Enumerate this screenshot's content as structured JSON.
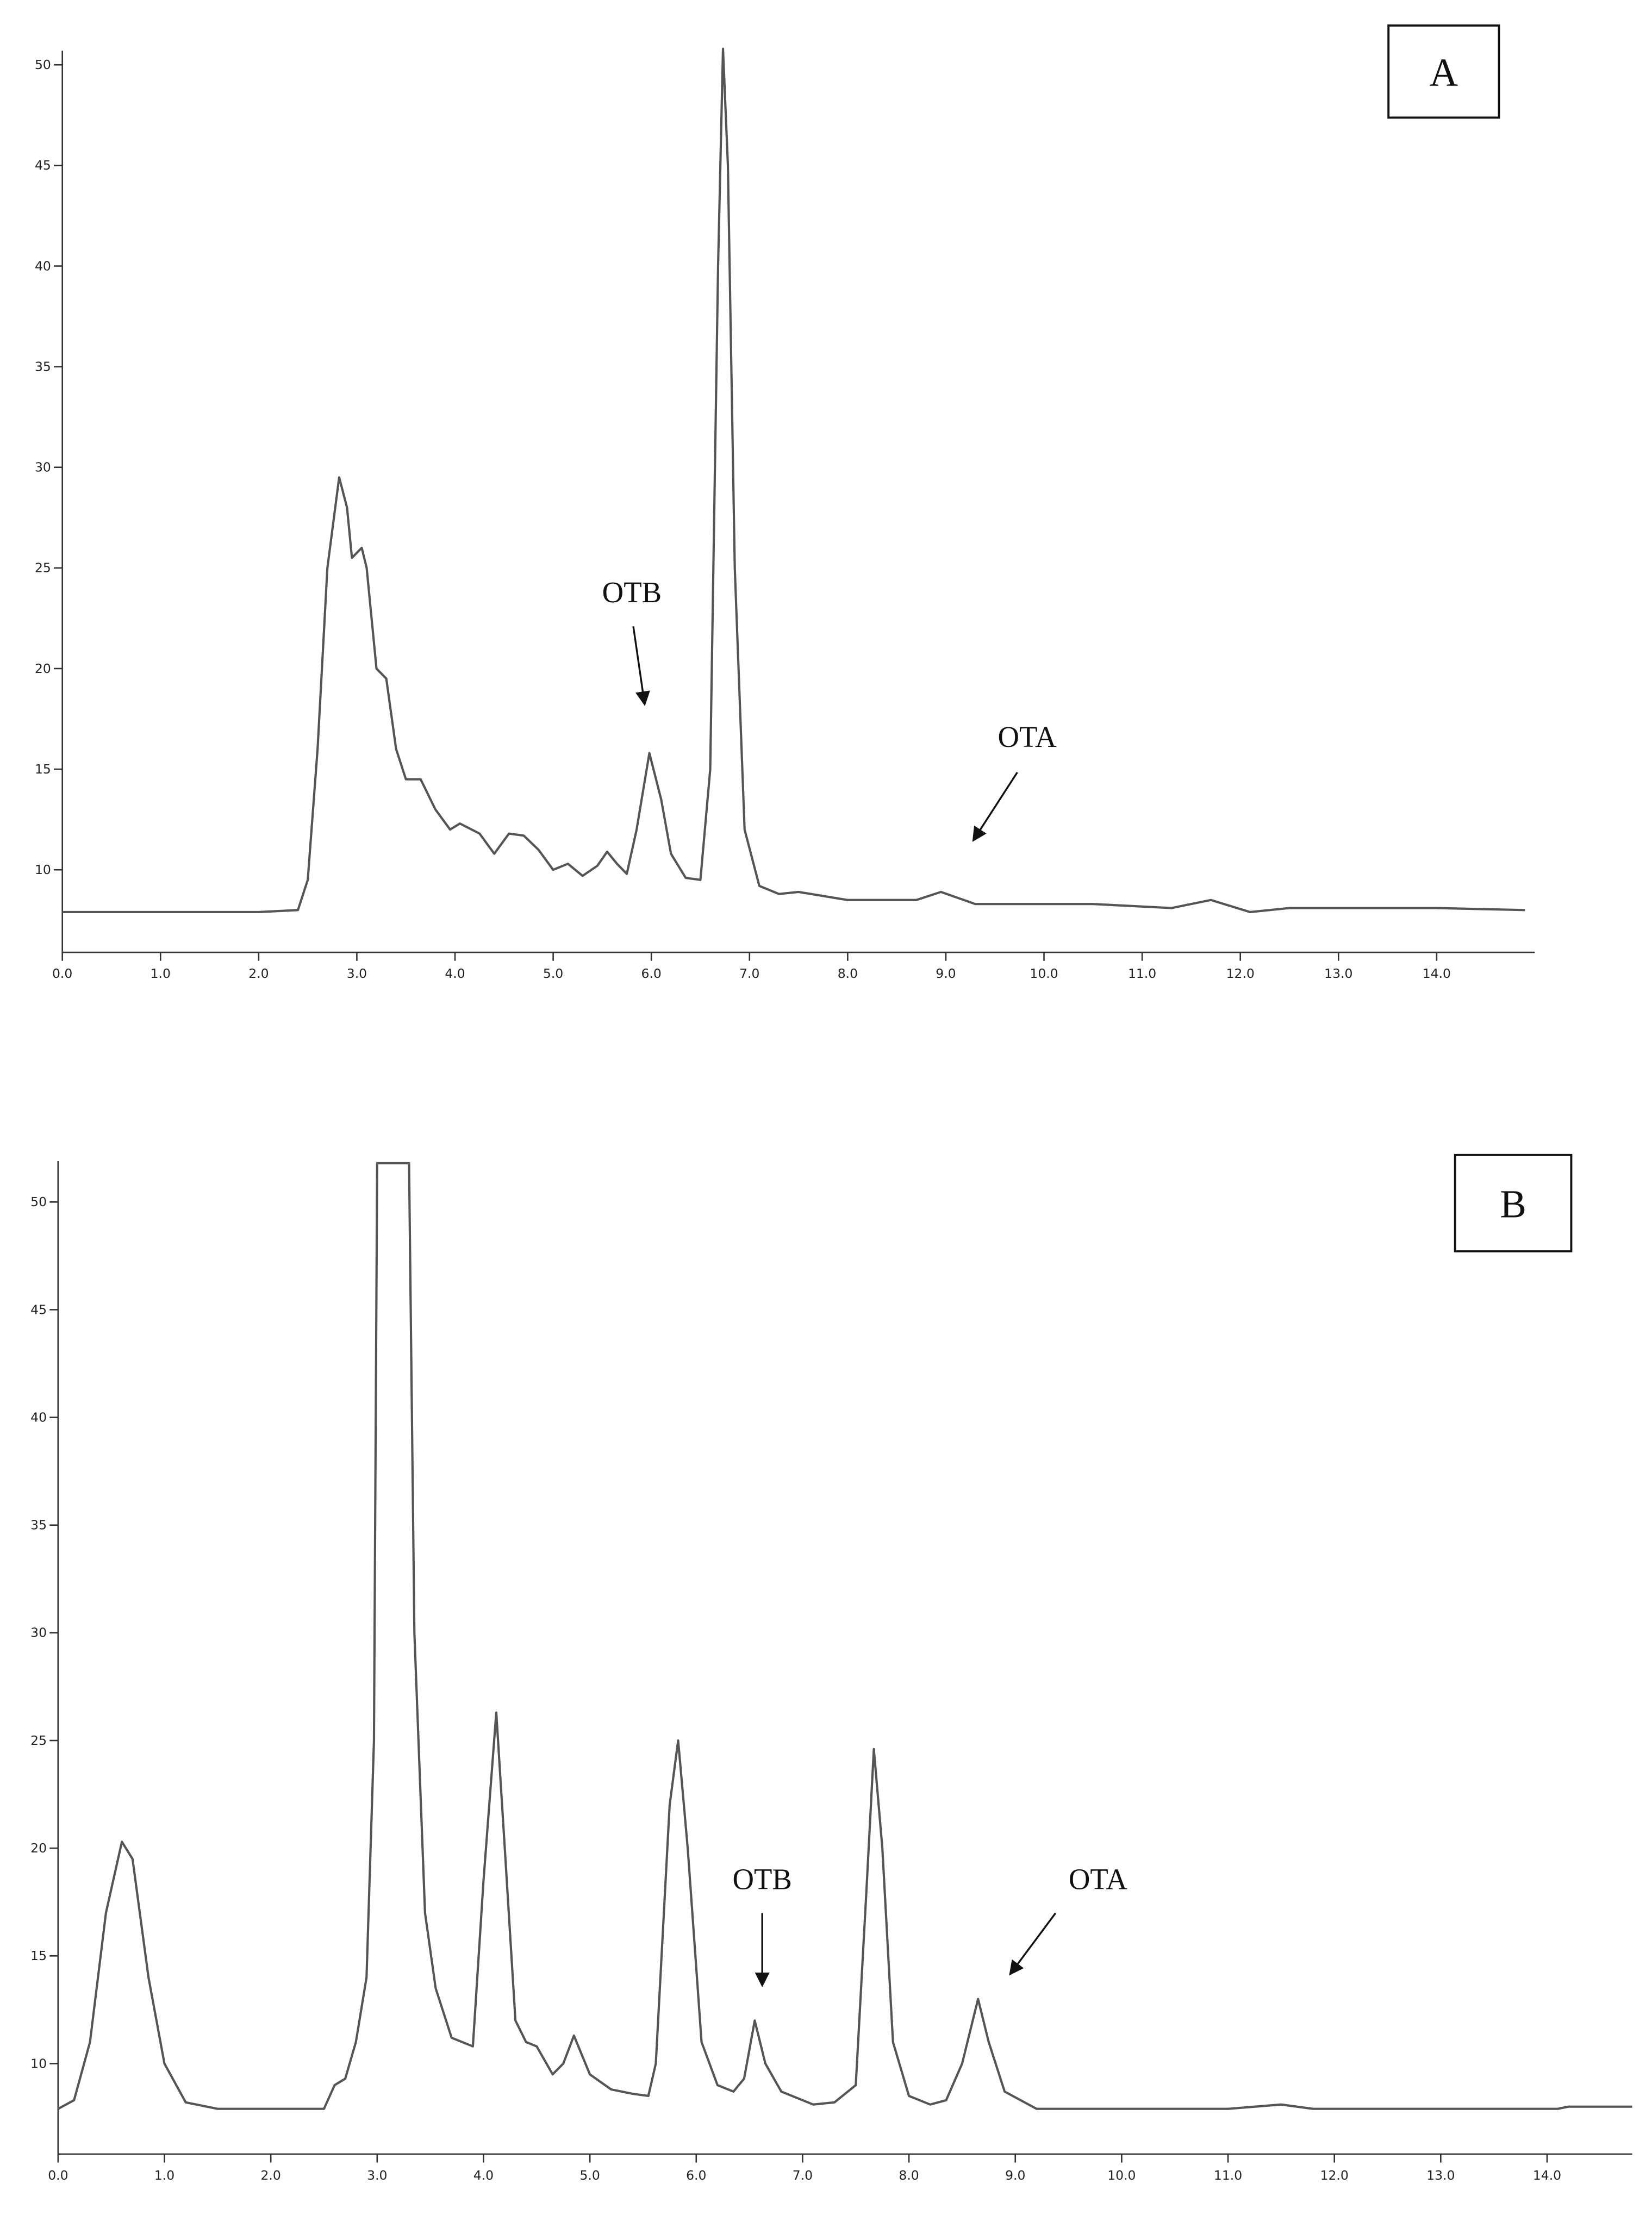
{
  "chart_data": [
    {
      "type": "line",
      "panel_label": "A",
      "annotations": [
        "OTB",
        "OTA"
      ],
      "x": [
        0,
        2.0,
        2.4,
        2.5,
        2.6,
        2.7,
        2.82,
        2.9,
        2.95,
        3.05,
        3.1,
        3.2,
        3.3,
        3.4,
        3.5,
        3.65,
        3.8,
        3.95,
        4.05,
        4.25,
        4.4,
        4.55,
        4.7,
        4.85,
        5.0,
        5.15,
        5.3,
        5.45,
        5.55,
        5.65,
        5.75,
        5.85,
        5.98,
        6.1,
        6.2,
        6.35,
        6.5,
        6.6,
        6.68,
        6.73,
        6.78,
        6.85,
        6.95,
        7.1,
        7.3,
        7.5,
        8.0,
        8.7,
        8.95,
        9.3,
        10.5,
        11.3,
        11.7,
        12.1,
        12.5,
        14.0,
        14.9
      ],
      "series": [
        {
          "color": "#555555",
          "values": [
            7.9,
            7.9,
            8.0,
            9.5,
            16,
            25,
            29.5,
            28,
            25.5,
            26,
            25,
            20,
            19.5,
            16,
            14.5,
            14.5,
            13,
            12,
            12.3,
            11.8,
            10.8,
            11.8,
            11.7,
            11,
            10,
            10.3,
            9.7,
            10.2,
            10.9,
            10.3,
            9.8,
            12,
            15.8,
            13.5,
            10.8,
            9.6,
            9.5,
            15,
            40,
            50.8,
            45,
            25,
            12,
            9.2,
            8.8,
            8.9,
            8.5,
            8.5,
            8.9,
            8.3,
            8.3,
            8.1,
            8.5,
            7.9,
            8.1,
            8.1,
            8.0
          ]
        }
      ],
      "xlim": [
        0,
        15.0
      ],
      "ylim": [
        5.9,
        50.7
      ],
      "xticks": [
        {
          "value": 0,
          "label": "0.0"
        },
        {
          "value": 1,
          "label": "1.0"
        },
        {
          "value": 2,
          "label": "2.0"
        },
        {
          "value": 3,
          "label": "3.0"
        },
        {
          "value": 4,
          "label": "4.0"
        },
        {
          "value": 5,
          "label": "5.0"
        },
        {
          "value": 6,
          "label": "6.0"
        },
        {
          "value": 7,
          "label": "7.0"
        },
        {
          "value": 8,
          "label": "8.0"
        },
        {
          "value": 9,
          "label": "9.0"
        },
        {
          "value": 10,
          "label": "10.0"
        },
        {
          "value": 11,
          "label": "11.0"
        },
        {
          "value": 12,
          "label": "12.0"
        },
        {
          "value": 13,
          "label": "13.0"
        },
        {
          "value": 14,
          "label": "14.0"
        }
      ],
      "yticks": [
        10,
        15,
        20,
        25,
        30,
        35,
        40,
        45,
        50
      ]
    },
    {
      "type": "line",
      "panel_label": "B",
      "annotations": [
        "OTB",
        "OTA"
      ],
      "x": [
        0,
        0.15,
        0.3,
        0.45,
        0.6,
        0.7,
        0.85,
        1.0,
        1.2,
        1.5,
        2.5,
        2.6,
        2.7,
        2.8,
        2.9,
        2.97,
        3.0,
        3.3,
        3.35,
        3.45,
        3.55,
        3.7,
        3.9,
        4.0,
        4.12,
        4.2,
        4.3,
        4.4,
        4.5,
        4.65,
        4.75,
        4.85,
        5.0,
        5.2,
        5.4,
        5.55,
        5.62,
        5.75,
        5.83,
        5.92,
        6.05,
        6.2,
        6.35,
        6.45,
        6.55,
        6.65,
        6.8,
        7.1,
        7.3,
        7.5,
        7.6,
        7.67,
        7.75,
        7.85,
        8.0,
        8.2,
        8.35,
        8.5,
        8.65,
        8.75,
        8.9,
        9.2,
        11.0,
        11.5,
        11.8,
        14.1,
        14.2,
        14.8
      ],
      "series": [
        {
          "color": "#555555",
          "values": [
            7.9,
            8.3,
            11,
            17,
            20.3,
            19.5,
            14,
            10,
            8.2,
            7.9,
            7.9,
            9,
            9.3,
            11,
            14,
            25,
            51.8,
            51.8,
            30,
            17,
            13.5,
            11.2,
            10.8,
            18.5,
            26.3,
            20,
            12,
            11,
            10.8,
            9.5,
            10,
            11.3,
            9.5,
            8.8,
            8.6,
            8.5,
            10,
            22,
            25,
            20,
            11,
            9,
            8.7,
            9.3,
            12,
            10,
            8.7,
            8.1,
            8.2,
            9,
            18,
            24.6,
            20,
            11,
            8.5,
            8.1,
            8.3,
            10,
            13,
            11,
            8.7,
            7.9,
            7.9,
            8.1,
            7.9,
            7.9,
            8.0,
            8.0
          ]
        }
      ],
      "xlim": [
        0,
        14.8
      ],
      "ylim": [
        5.8,
        51.9
      ],
      "xticks": [
        {
          "value": 0,
          "label": "0.0"
        },
        {
          "value": 1,
          "label": "1.0"
        },
        {
          "value": 2,
          "label": "2.0"
        },
        {
          "value": 3,
          "label": "3.0"
        },
        {
          "value": 4,
          "label": "4.0"
        },
        {
          "value": 5,
          "label": "5.0"
        },
        {
          "value": 6,
          "label": "6.0"
        },
        {
          "value": 7,
          "label": "7.0"
        },
        {
          "value": 8,
          "label": "8.0"
        },
        {
          "value": 9,
          "label": "9.0"
        },
        {
          "value": 10,
          "label": "10.0"
        },
        {
          "value": 11,
          "label": "11.0"
        },
        {
          "value": 12,
          "label": "12.0"
        },
        {
          "value": 13,
          "label": "13.0"
        },
        {
          "value": 14,
          "label": "14.0"
        }
      ],
      "yticks": [
        10,
        15,
        20,
        25,
        30,
        35,
        40,
        45,
        50
      ]
    }
  ]
}
